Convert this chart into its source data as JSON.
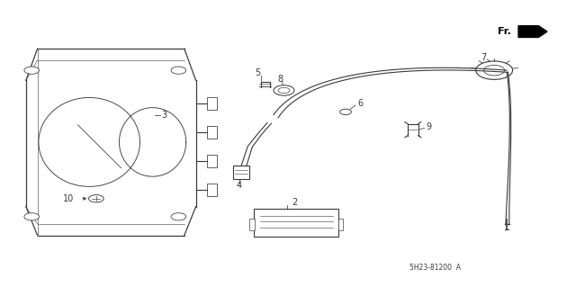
{
  "title": "",
  "background_color": "#ffffff",
  "fig_width": 6.4,
  "fig_height": 3.19,
  "dpi": 100,
  "line_color": "#3a3a3a",
  "text_color": "#3a3a3a",
  "fr_label": "Fr.",
  "part_number": "5H23-81200  A"
}
